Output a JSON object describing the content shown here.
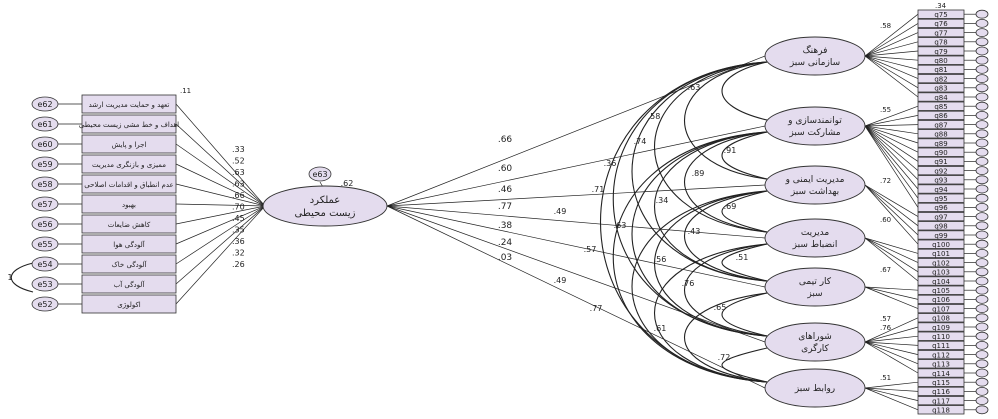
{
  "main_factor": {
    "label": "عملکرد زیست محیطی",
    "error": "e63",
    "r2": ".62"
  },
  "left_indicators": [
    {
      "label": "تعهد و حمایت مدیریت ارشد",
      "error": "e62",
      "r2": ".11"
    },
    {
      "label": "اهداف و خط مشی زیست محیطی",
      "error": "e61",
      "r2": ""
    },
    {
      "label": "اجرا و پایش",
      "error": "e60",
      "r2": ""
    },
    {
      "label": "ممیزی و بازنگری مدیریت",
      "error": "e59",
      "r2": ""
    },
    {
      "label": "عدم انطباق و اقدامات اصلاحی",
      "error": "e58",
      "r2": ""
    },
    {
      "label": "بهبود",
      "error": "e57",
      "r2": ""
    },
    {
      "label": "کاهش ضایعات",
      "error": "e56",
      "r2": ""
    },
    {
      "label": "آلودگی هوا",
      "error": "e55",
      "r2": ""
    },
    {
      "label": "آلودگی خاک",
      "error": "e54",
      "r2": ""
    },
    {
      "label": "آلودگی آب",
      "error": "e53",
      "r2": ""
    },
    {
      "label": "اکولوژی",
      "error": "e52",
      "r2": ""
    }
  ],
  "left_loadings": [
    ".33",
    ".52",
    ".63",
    ".63",
    ".66",
    ".70",
    ".45",
    ".35",
    ".36",
    ".32",
    ".26"
  ],
  "error_covariance": "1",
  "factors": [
    {
      "label1": "فرهنگ",
      "label2": "سازمانی سبز"
    },
    {
      "label1": "توانمندسازی و",
      "label2": "مشارکت سبز"
    },
    {
      "label1": "مدیریت ایمنی و",
      "label2": "بهداشت سبز"
    },
    {
      "label1": "مدیریت",
      "label2": "انضباط سبز"
    },
    {
      "label1": "کار تیمی",
      "label2": "سبز"
    },
    {
      "label1": "شوراهای",
      "label2": "کارگری"
    },
    {
      "label1": "روابط سبز",
      "label2": ""
    }
  ],
  "path_coefficients": [
    ".66",
    ".60",
    ".46",
    ".77",
    ".38",
    ".24",
    ".03"
  ],
  "factor_correlations": [
    ".63",
    ".58",
    ".74",
    ".36",
    ".71",
    ".49",
    ".91",
    ".89",
    ".34",
    ".63",
    ".57",
    ".49",
    ".77",
    ".69",
    ".43",
    ".56",
    ".76",
    ".61",
    ".51",
    ".65",
    ".72"
  ],
  "items": [
    "q75",
    "q76",
    "q77",
    "q78",
    "q79",
    "q80",
    "q81",
    "q82",
    "q83",
    "q84",
    "q85",
    "q86",
    "q87",
    "q88",
    "q89",
    "q90",
    "q91",
    "q92",
    "q93",
    "q94",
    "q95",
    "q96",
    "q97",
    "q98",
    "q99",
    "q100",
    "q101",
    "q102",
    "q103",
    "q104",
    "q105",
    "q106",
    "q107",
    "q108",
    "q109",
    "q110",
    "q111",
    "q112",
    "q113",
    "q114",
    "q115",
    "q116",
    "q117",
    "q118"
  ],
  "item_loadings": [
    ".34",
    ".58",
    ".55",
    ".72",
    ".60",
    ".67",
    ".57",
    ".76",
    ".51"
  ]
}
